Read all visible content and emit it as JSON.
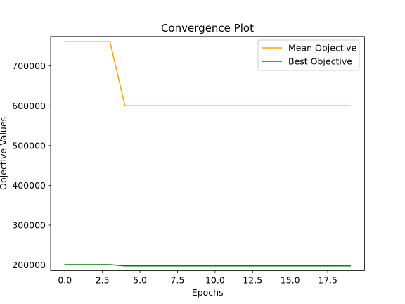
{
  "chart_data": {
    "type": "line",
    "title": "Convergence Plot",
    "xlabel": "Epochs",
    "ylabel": "Objective Values",
    "xlim": [
      -0.95,
      19.95
    ],
    "ylim": [
      186000,
      774000
    ],
    "xticks": [
      0.0,
      2.5,
      5.0,
      7.5,
      10.0,
      12.5,
      15.0,
      17.5
    ],
    "xtick_labels": [
      "0.0",
      "2.5",
      "5.0",
      "7.5",
      "10.0",
      "12.5",
      "15.0",
      "17.5"
    ],
    "yticks": [
      200000,
      300000,
      400000,
      500000,
      600000,
      700000
    ],
    "ytick_labels": [
      "200000",
      "300000",
      "400000",
      "500000",
      "600000",
      "700000"
    ],
    "x": [
      0,
      1,
      2,
      3,
      4,
      5,
      6,
      7,
      8,
      9,
      10,
      11,
      12,
      13,
      14,
      15,
      16,
      17,
      18,
      19
    ],
    "series": [
      {
        "name": "Mean Objective",
        "color": "#ffa500",
        "values": [
          761000,
          761000,
          761000,
          761000,
          600000,
          600000,
          600000,
          600000,
          600000,
          600000,
          600000,
          600000,
          600000,
          600000,
          600000,
          600000,
          600000,
          600000,
          600000,
          600000
        ]
      },
      {
        "name": "Best Objective",
        "color": "#008000",
        "values": [
          201000,
          201000,
          201000,
          201000,
          198000,
          198000,
          198000,
          198000,
          198000,
          198000,
          198000,
          198000,
          198000,
          198000,
          198000,
          198000,
          198000,
          198000,
          198000,
          198000
        ]
      }
    ],
    "legend_position": "top-right",
    "grid": false
  }
}
